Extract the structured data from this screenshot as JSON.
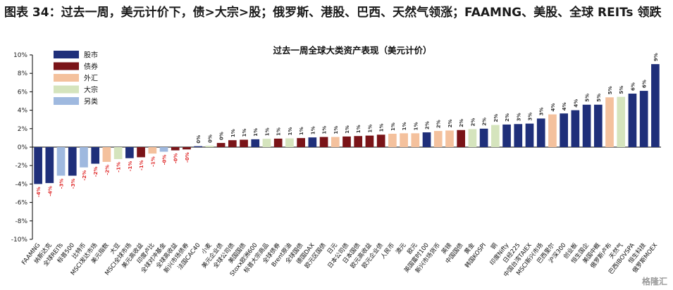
{
  "heading": "图表 34：过去一周，美元计价下，债>大宗>股；俄罗斯、港股、巴西、天然气领涨；FAAMNG、美股、全球 REITs 领跌",
  "watermark": "格隆汇",
  "chart_data": {
    "type": "bar",
    "title": "过去一周全球大类资产表现（美元计价）",
    "ylim": [
      -10,
      10
    ],
    "yticks": [
      -10,
      -8,
      -6,
      -4,
      -2,
      0,
      2,
      4,
      6,
      8,
      10
    ],
    "ytick_labels": [
      "-10%",
      "-8%",
      "-6%",
      "-4%",
      "-2%",
      "0%",
      "2%",
      "4%",
      "6%",
      "8%",
      "10%"
    ],
    "grid": false,
    "legend_position": "top-left",
    "legend": [
      {
        "key": "stock",
        "label": "股市",
        "color": "#1f2f7a"
      },
      {
        "key": "bond",
        "label": "债券",
        "color": "#7a1418"
      },
      {
        "key": "fx",
        "label": "外汇",
        "color": "#f4c19d"
      },
      {
        "key": "commodity",
        "label": "大宗",
        "color": "#d5e4bd"
      },
      {
        "key": "alt",
        "label": "另类",
        "color": "#9fb9df"
      }
    ],
    "label_colors": {
      "negative": "#e03030",
      "positive": "#333333"
    },
    "categories": [
      "FAAMNG",
      "纳斯达克",
      "全球REITs",
      "标普500",
      "比特币",
      "MSCI发达市场",
      "美元指数",
      "大豆",
      "MSCI全球市场",
      "美元高收益",
      "印度卢比",
      "全球对冲基金",
      "全球高收益",
      "新兴市场债券",
      "法国CAC40",
      "小麦",
      "美元企业债",
      "全球公司债",
      "美国国债",
      "Stoxx欧洲600",
      "标普大宗商品",
      "全球债券",
      "Brent原油",
      "全球国债",
      "德国DAX",
      "欧元区国债",
      "日元",
      "日本公司债",
      "日本国债",
      "欧元高收益",
      "欧元企业债",
      "人民币",
      "澳元",
      "欧元",
      "英国富时100",
      "新兴市场货币",
      "英镑",
      "中国国债",
      "黄金",
      "韩国KOSPI",
      "铜",
      "印度Nifty",
      "日经225",
      "中国台湾TAIEX",
      "MSCI新兴市场",
      "巴西里尔",
      "沪深300",
      "创业板",
      "恒生国企",
      "美国中概",
      "俄罗斯卢布",
      "天然气",
      "巴西IBOVSPA",
      "恒生科技",
      "俄罗斯MOEX"
    ],
    "series": [
      {
        "values": [
          -4.0,
          -3.9,
          -3.1,
          -3.1,
          -2.2,
          -1.8,
          -1.6,
          -1.3,
          -1.2,
          -1.1,
          -0.7,
          -0.5,
          -0.35,
          -0.25,
          0.1,
          0.15,
          0.45,
          0.75,
          0.8,
          0.85,
          0.9,
          0.92,
          0.95,
          0.98,
          1.05,
          1.1,
          1.1,
          1.15,
          1.2,
          1.25,
          1.35,
          1.45,
          1.5,
          1.5,
          1.6,
          1.75,
          1.8,
          1.85,
          1.95,
          2.0,
          2.4,
          2.45,
          2.5,
          2.55,
          3.1,
          3.55,
          3.65,
          4.0,
          4.6,
          4.6,
          5.4,
          5.45,
          5.8,
          6.1,
          9.0
        ]
      }
    ],
    "data_labels": [
      "-4%",
      "-4%",
      "-3%",
      "-3%",
      "-2%",
      "-2%",
      "-2%",
      "-1%",
      "-1%",
      "-1%",
      "-1%",
      "-0%",
      "-0%",
      "-0%",
      "0%",
      "0%",
      "0%",
      "1%",
      "1%",
      "1%",
      "1%",
      "1%",
      "1%",
      "1%",
      "1%",
      "1%",
      "1%",
      "1%",
      "1%",
      "1%",
      "1%",
      "1%",
      "1%",
      "1%",
      "2%",
      "2%",
      "2%",
      "2%",
      "2%",
      "2%",
      "2%",
      "2%",
      "3%",
      "3%",
      "3%",
      "4%",
      "4%",
      "4%",
      "5%",
      "5%",
      "5%",
      "5%",
      "6%",
      "6%",
      "9%"
    ],
    "asset_classes": [
      "stock",
      "stock",
      "alt",
      "stock",
      "alt",
      "stock",
      "fx",
      "commodity",
      "stock",
      "bond",
      "fx",
      "alt",
      "bond",
      "bond",
      "stock",
      "commodity",
      "bond",
      "bond",
      "bond",
      "stock",
      "commodity",
      "bond",
      "commodity",
      "bond",
      "stock",
      "bond",
      "fx",
      "bond",
      "bond",
      "bond",
      "bond",
      "fx",
      "fx",
      "fx",
      "stock",
      "fx",
      "fx",
      "bond",
      "commodity",
      "stock",
      "commodity",
      "stock",
      "stock",
      "stock",
      "stock",
      "fx",
      "stock",
      "stock",
      "stock",
      "stock",
      "fx",
      "commodity",
      "stock",
      "stock",
      "stock"
    ]
  }
}
